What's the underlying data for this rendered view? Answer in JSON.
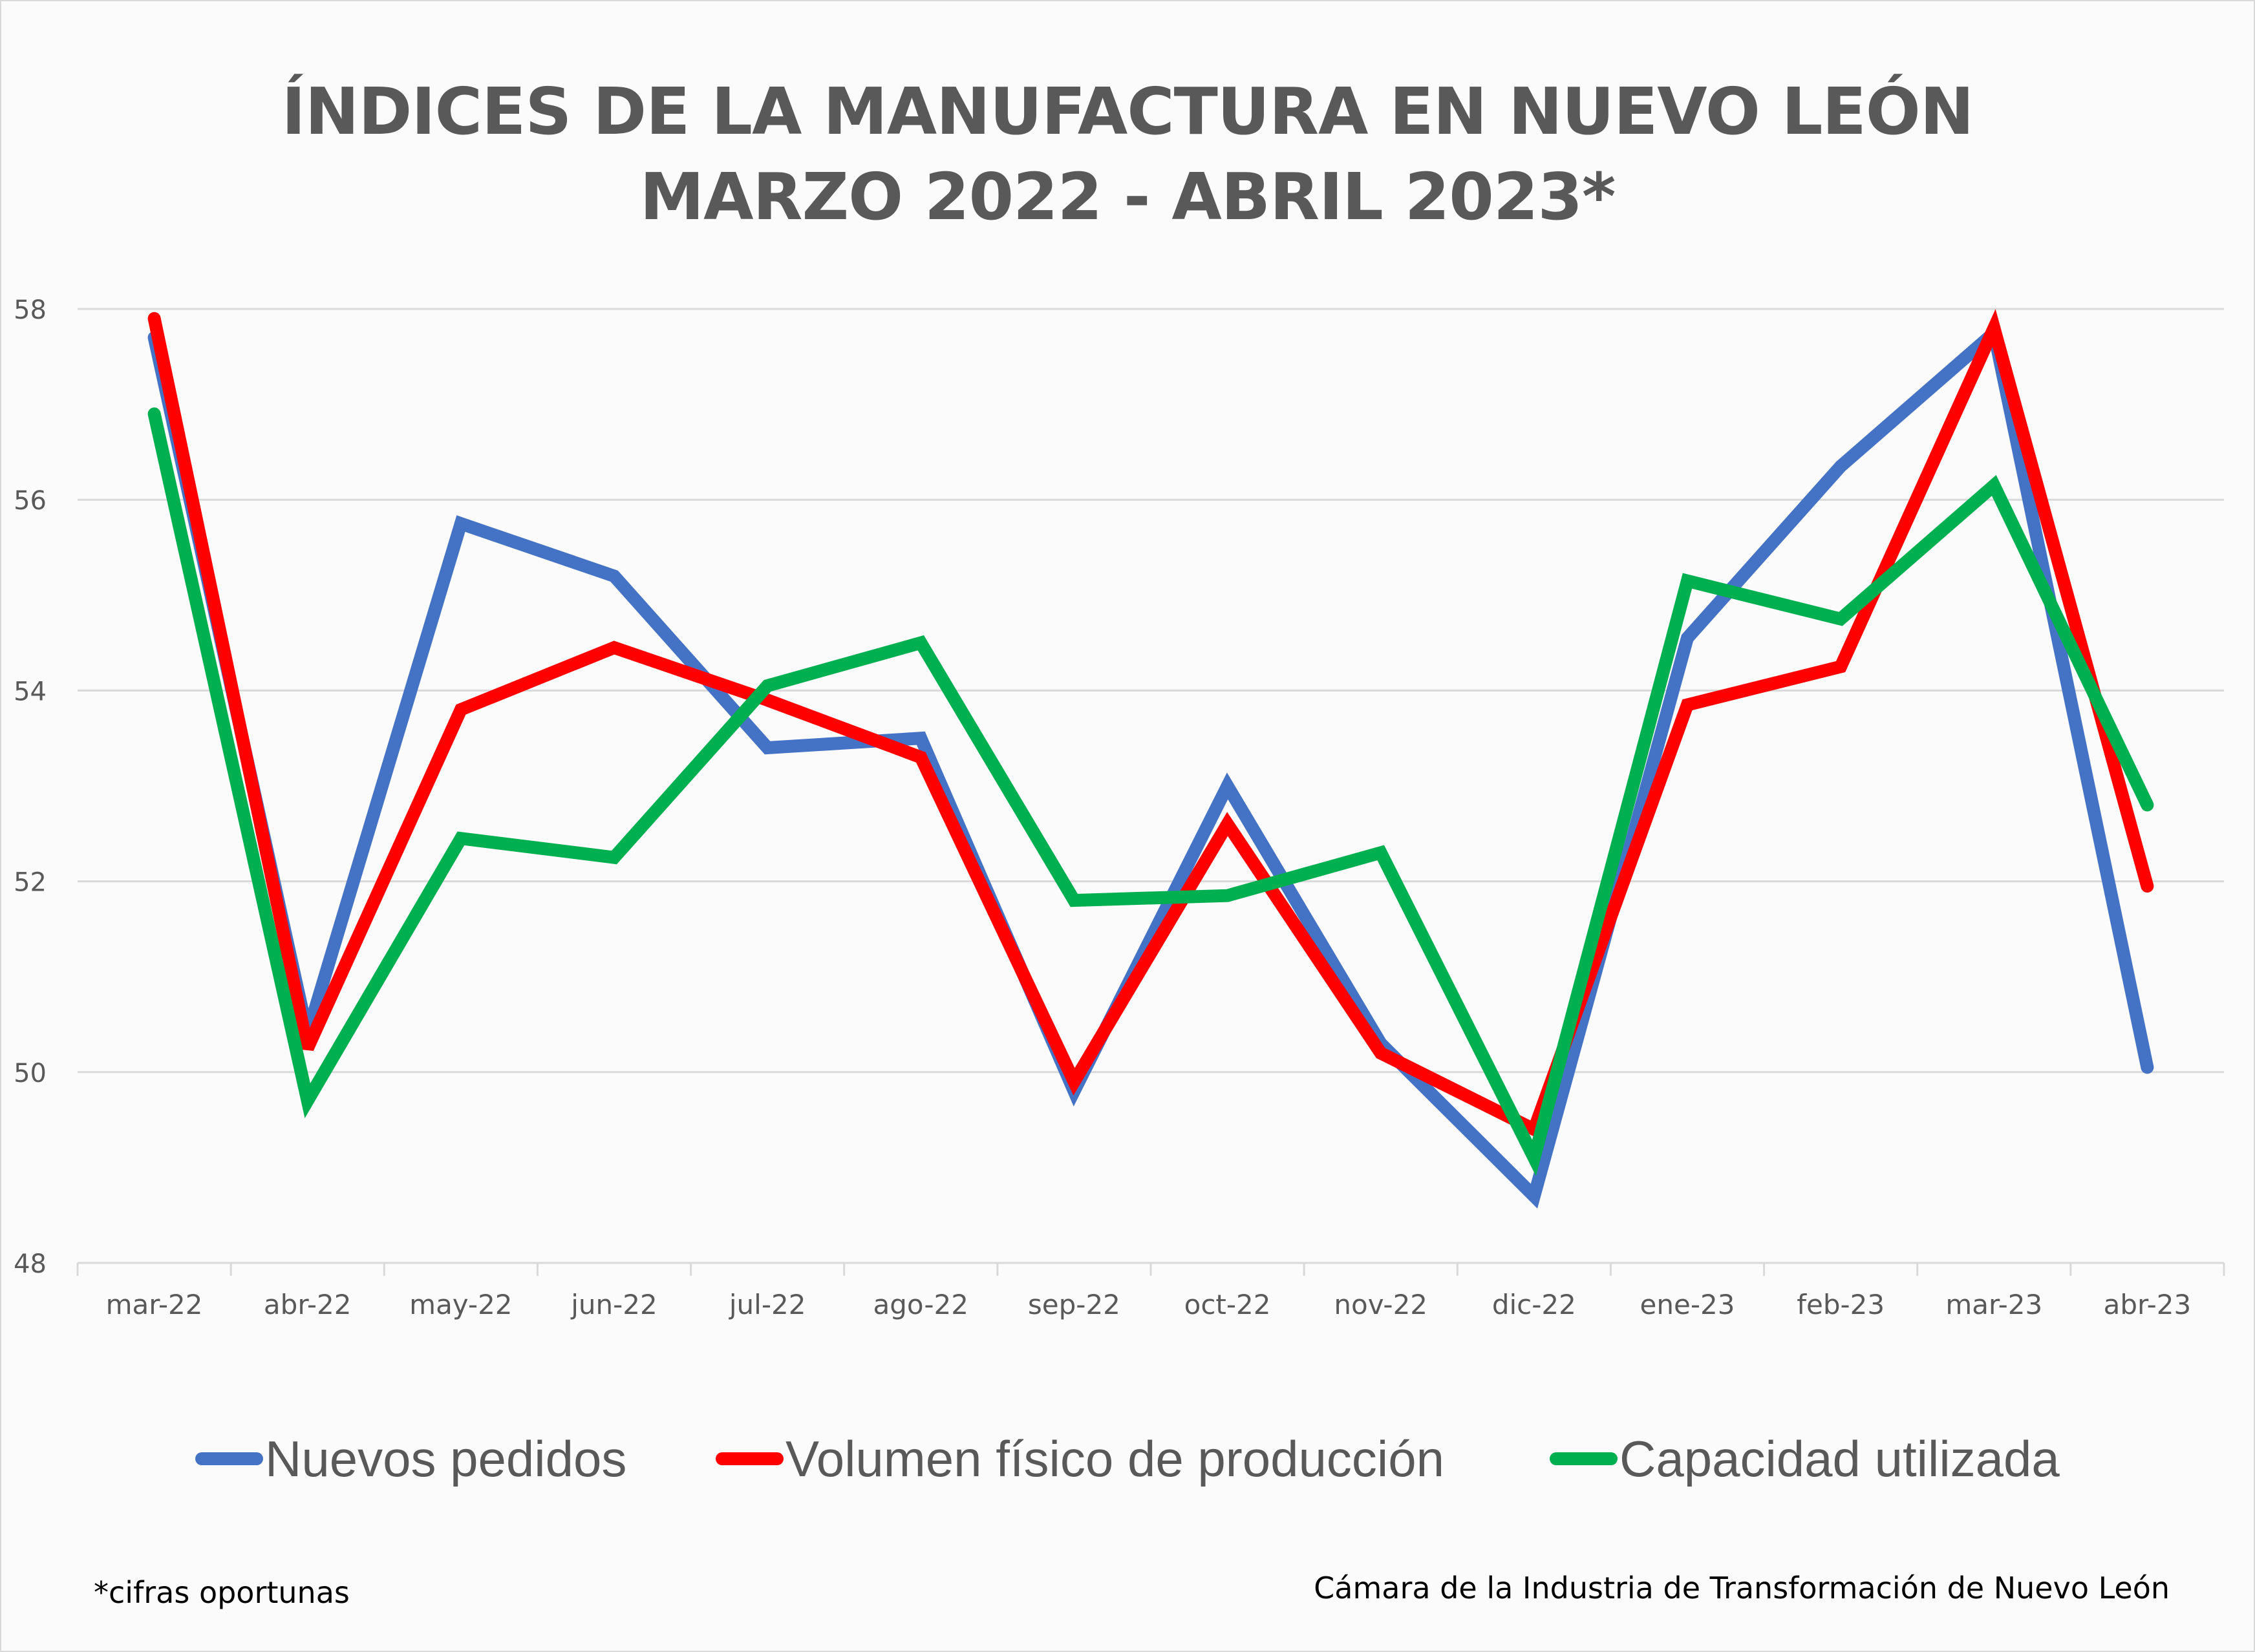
{
  "chart_data": {
    "type": "line",
    "title": [
      "ÍNDICES DE LA MANUFACTURA EN NUEVO LEÓN",
      "MARZO 2022 - ABRIL 2023*"
    ],
    "categories": [
      "mar-22",
      "abr-22",
      "may-22",
      "jun-22",
      "jul-22",
      "ago-22",
      "sep-22",
      "oct-22",
      "nov-22",
      "dic-22",
      "ene-23",
      "feb-23",
      "mar-23",
      "abr-23"
    ],
    "y_ticks": [
      "48",
      "50",
      "52",
      "54",
      "56",
      "58"
    ],
    "ylim": [
      48,
      58
    ],
    "grid": true,
    "legend_position": "bottom",
    "series": [
      {
        "name": "Nuevos pedidos",
        "color": "#4472C4",
        "values": [
          57.7,
          50.4,
          55.75,
          55.2,
          53.4,
          53.5,
          49.8,
          53.0,
          50.3,
          48.7,
          54.55,
          56.35,
          57.75,
          50.05
        ]
      },
      {
        "name": "Volumen físico de producción",
        "color": "#FF0000",
        "values": [
          57.9,
          50.25,
          53.8,
          54.45,
          53.9,
          53.3,
          49.9,
          52.6,
          50.2,
          49.4,
          53.85,
          54.25,
          57.8,
          51.95
        ]
      },
      {
        "name": "Capacidad utilizada",
        "color": "#00B050",
        "values": [
          56.9,
          49.7,
          52.45,
          52.25,
          54.05,
          54.5,
          51.8,
          51.85,
          52.3,
          49.1,
          55.15,
          54.75,
          56.15,
          52.8
        ]
      }
    ]
  },
  "footnote": "*cifras oportunas",
  "source": "Cámara de la Industria de Transformación de Nuevo León"
}
